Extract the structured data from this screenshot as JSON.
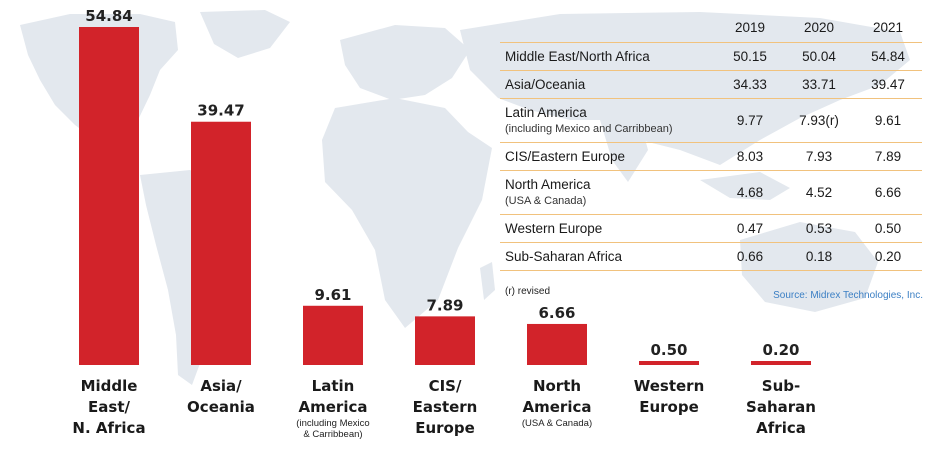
{
  "chart_data": {
    "type": "bar",
    "categories": [
      {
        "label": [
          "Middle",
          "East/",
          "N. Africa"
        ],
        "sub": []
      },
      {
        "label": [
          "Asia/",
          "Oceania"
        ],
        "sub": []
      },
      {
        "label": [
          "Latin",
          "America"
        ],
        "sub": [
          "(including Mexico",
          "& Carribbean)"
        ]
      },
      {
        "label": [
          "CIS/",
          "Eastern",
          "Europe"
        ],
        "sub": []
      },
      {
        "label": [
          "North",
          "America"
        ],
        "sub": [
          "(USA & Canada)"
        ]
      },
      {
        "label": [
          "Western",
          "Europe"
        ],
        "sub": []
      },
      {
        "label": [
          "Sub-",
          "Saharan",
          "Africa"
        ],
        "sub": []
      }
    ],
    "values": [
      54.84,
      39.47,
      9.61,
      7.89,
      6.66,
      0.5,
      0.2
    ],
    "value_labels": [
      "54.84",
      "39.47",
      "9.61",
      "7.89",
      "6.66",
      "0.50",
      "0.20"
    ],
    "ylim": [
      0,
      54.84
    ],
    "bar_color": "#d2232a",
    "grid": false
  },
  "table": {
    "headers": [
      "2019",
      "2020",
      "2021"
    ],
    "rows": [
      {
        "region": "Middle East/North Africa",
        "sub": "",
        "v2019": "50.15",
        "v2020": "50.04",
        "v2021": "54.84"
      },
      {
        "region": "Asia/Oceania",
        "sub": "",
        "v2019": "34.33",
        "v2020": "33.71",
        "v2021": "39.47"
      },
      {
        "region": "Latin America",
        "sub": "(including Mexico and Carribbean)",
        "v2019": "9.77",
        "v2020": "7.93(r)",
        "v2021": "9.61"
      },
      {
        "region": "CIS/Eastern Europe",
        "sub": "",
        "v2019": "8.03",
        "v2020": "7.93",
        "v2021": "7.89"
      },
      {
        "region": "North America",
        "sub": "(USA & Canada)",
        "v2019": "4.68",
        "v2020": "4.52",
        "v2021": "6.66"
      },
      {
        "region": "Western Europe",
        "sub": "",
        "v2019": "0.47",
        "v2020": "0.53",
        "v2021": "0.50"
      },
      {
        "region": "Sub-Saharan Africa",
        "sub": "",
        "v2019": "0.66",
        "v2020": "0.18",
        "v2021": "0.20"
      }
    ],
    "border_color": "#f1c27d"
  },
  "note": "(r) revised",
  "source": "Source: Midrex Technologies, Inc.",
  "source_color": "#3b7fc4",
  "map_color": "#e3e8ee"
}
